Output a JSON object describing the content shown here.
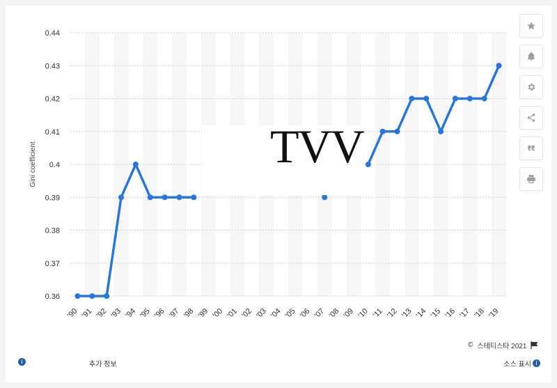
{
  "chart_data": {
    "type": "line",
    "ylabel": "Gini coefficient",
    "xlabel": "",
    "ylim": [
      0.36,
      0.44
    ],
    "yticks": [
      "0.44",
      "0.43",
      "0.42",
      "0.41",
      "0.4",
      "0.39",
      "0.38",
      "0.37",
      "0.36"
    ],
    "ytick_values": [
      0.44,
      0.43,
      0.42,
      0.41,
      0.4,
      0.39,
      0.38,
      0.37,
      0.36
    ],
    "categories": [
      "'90",
      "'91",
      "'92",
      "'93",
      "'94",
      "'95",
      "'96",
      "'97",
      "'98",
      "'99",
      "'00",
      "'01",
      "'02",
      "'03",
      "'04",
      "'05",
      "'06",
      "'07",
      "'08",
      "'09",
      "'10",
      "'11",
      "'12",
      "'13",
      "'14",
      "'15",
      "'16",
      "'17",
      "'18",
      "'19"
    ],
    "series": [
      {
        "values": [
          0.36,
          0.36,
          0.36,
          0.39,
          0.4,
          0.39,
          0.39,
          0.39,
          0.39,
          null,
          null,
          null,
          null,
          null,
          null,
          null,
          null,
          0.39,
          null,
          null,
          0.4,
          0.41,
          0.41,
          0.42,
          0.42,
          0.41,
          0.42,
          0.42,
          0.42,
          0.43
        ]
      }
    ],
    "grid": true,
    "line_color": "#2876dd"
  },
  "overlay_text": "TVV",
  "sidebar": {
    "icons": [
      "star-icon",
      "bell-icon",
      "gear-icon",
      "share-icon",
      "quote-icon",
      "print-icon"
    ]
  },
  "footer": {
    "copyright_symbol": "©",
    "copyright_text": "스테티스타 2021",
    "flag_icon": "flag-icon",
    "more_info": "추가 정보",
    "source": "소스 표시"
  }
}
